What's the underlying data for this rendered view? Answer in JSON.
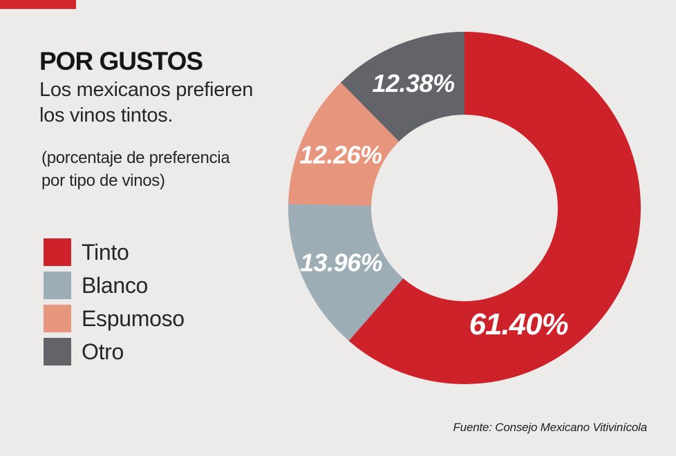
{
  "header": {
    "title": "POR GUSTOS",
    "subtitle": "Los mexicanos prefieren\nlos vinos tintos.",
    "note": "(porcentaje de preferencia\npor tipo de vinos)"
  },
  "source": "Fuente: Consejo Mexicano Vitivinícola",
  "colors": {
    "background": "#ecebe9",
    "accent": "#d2252c",
    "text": "#1e1e1c",
    "slice_label_text": "#ffffff",
    "donut_hole": "#ffffff"
  },
  "chart_data": {
    "type": "pie",
    "donut": true,
    "title": "POR GUSTOS",
    "categories": [
      "Tinto",
      "Blanco",
      "Espumoso",
      "Otro"
    ],
    "series": [
      {
        "name": "Tinto",
        "value": 61.4,
        "label": "61.40%",
        "color": "#ce222a"
      },
      {
        "name": "Blanco",
        "value": 13.96,
        "label": "13.96%",
        "color": "#9dadb6"
      },
      {
        "name": "Espumoso",
        "value": 12.26,
        "label": "12.26%",
        "color": "#e8957d"
      },
      {
        "name": "Otro",
        "value": 12.38,
        "label": "12.38%",
        "color": "#626469"
      }
    ],
    "legend_position": "left",
    "start_angle_deg": 0,
    "clockwise": true,
    "layout": {
      "center": {
        "x": 672,
        "y": 301
      },
      "outer_radius": 255,
      "inner_radius": 135,
      "label_radius": 195,
      "label_overrides": {
        "Tinto": {
          "angle_deg": 155,
          "radius": 185,
          "big": true
        }
      }
    }
  }
}
